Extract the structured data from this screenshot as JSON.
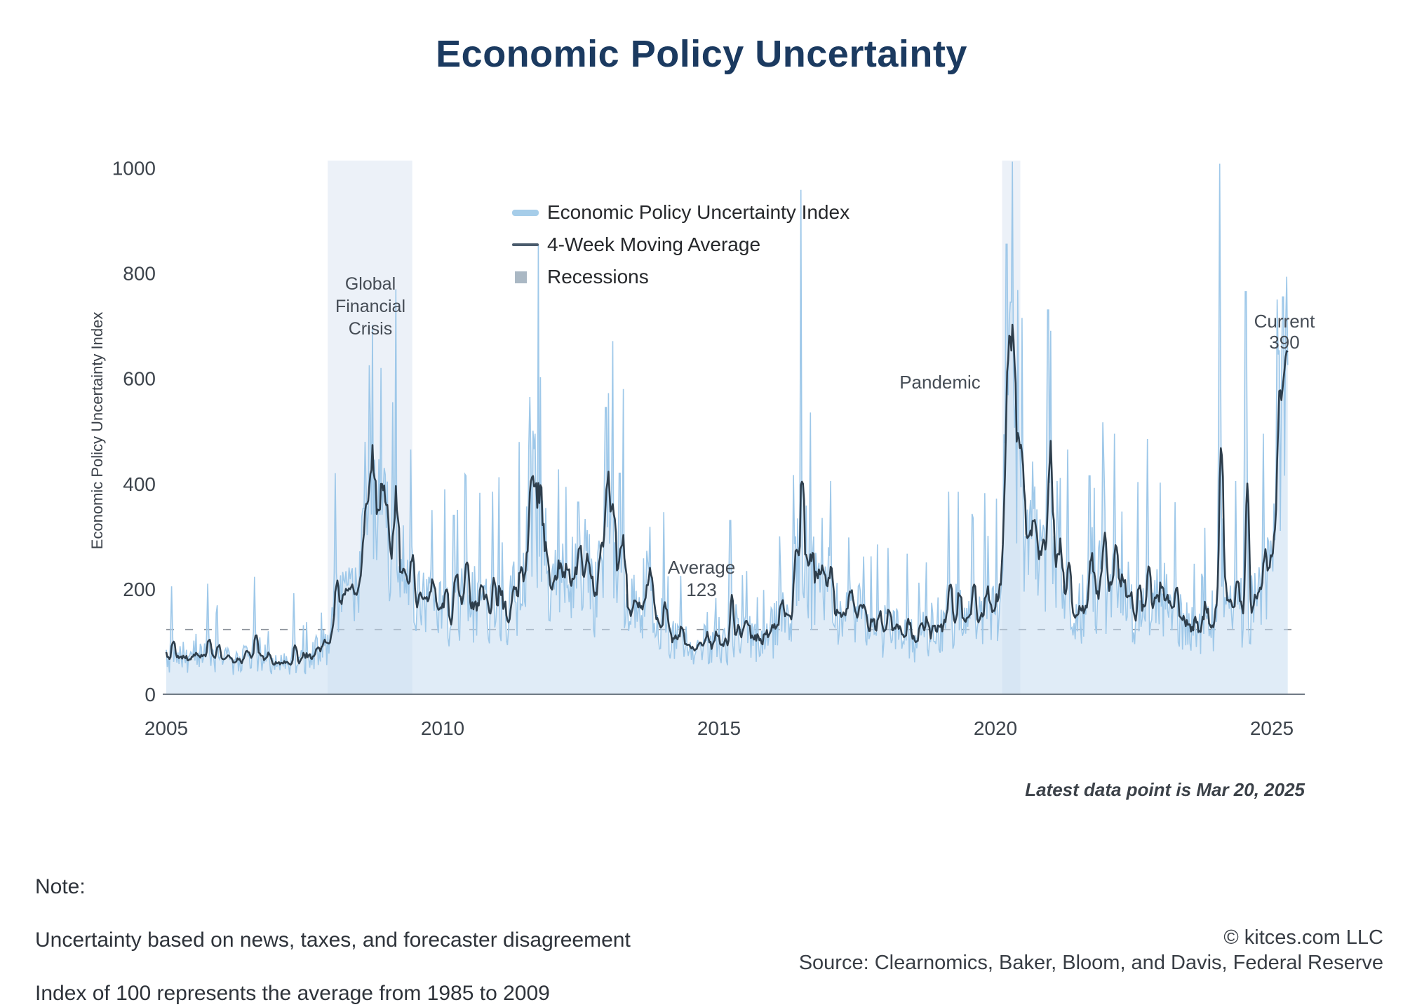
{
  "title": "Economic Policy Uncertainty",
  "legend": {
    "items": [
      {
        "label": "Economic Policy Uncertainty Index",
        "swatch": "thick-line",
        "color": "#a6cde9"
      },
      {
        "label": "4-Week Moving Average",
        "swatch": "thin-line",
        "color": "#4a5b6c"
      },
      {
        "label": "Recessions",
        "swatch": "square",
        "color": "#aab8c4"
      }
    ]
  },
  "annotations": {
    "gfc": "Global\nFinancial\nCrisis",
    "pandemic": "Pandemic",
    "average": "Average\n123",
    "current": "Current\n390"
  },
  "footnotes": {
    "latest": "Latest data point is Mar 20, 2025",
    "note_title": "Note:",
    "note_line1": "Uncertainty based on news, taxes, and forecaster disagreement",
    "note_line2": "Index of 100 represents the average from 1985 to 2009",
    "copyright": "© kitces.com LLC",
    "source": "Source: Clearnomics, Baker, Bloom, and Davis, Federal Reserve"
  },
  "chart_data": {
    "type": "area",
    "title": "Economic Policy Uncertainty",
    "xlabel": "",
    "ylabel": "Economic Policy Uncertainty Index",
    "x_ticks": [
      2005,
      2010,
      2015,
      2020,
      2025
    ],
    "y_ticks": [
      0,
      200,
      400,
      600,
      800,
      1000
    ],
    "x_range": [
      2005,
      2025.3
    ],
    "y_range": [
      0,
      1014
    ],
    "grid": false,
    "legend_position": "upper-left-inside",
    "average_value": 123,
    "current_value": 390,
    "latest_point_label": "Mar 20, 2025",
    "recessions": [
      {
        "label": "Global Financial Crisis",
        "start": 2007.92,
        "end": 2009.45
      },
      {
        "label": "Pandemic",
        "start": 2020.12,
        "end": 2020.45
      }
    ],
    "series": [
      {
        "name": "Economic Policy Uncertainty Index",
        "style": "weekly spikes with filled area",
        "note": "weekly index values; anchors give the smoothed level, spikes give notable peaks read off the chart",
        "anchors": [
          [
            2005,
            75
          ],
          [
            2005.4,
            65
          ],
          [
            2005.8,
            72
          ],
          [
            2006.2,
            60
          ],
          [
            2006.6,
            80
          ],
          [
            2006.9,
            62
          ],
          [
            2007.2,
            58
          ],
          [
            2007.6,
            68
          ],
          [
            2007.95,
            105
          ],
          [
            2008.15,
            165
          ],
          [
            2008.45,
            185
          ],
          [
            2008.7,
            390
          ],
          [
            2008.9,
            355
          ],
          [
            2009.1,
            285
          ],
          [
            2009.35,
            215
          ],
          [
            2009.6,
            190
          ],
          [
            2009.85,
            170
          ],
          [
            2010.1,
            150
          ],
          [
            2010.4,
            185
          ],
          [
            2010.65,
            155
          ],
          [
            2010.95,
            185
          ],
          [
            2011.15,
            140
          ],
          [
            2011.45,
            230
          ],
          [
            2011.62,
            400
          ],
          [
            2011.8,
            275
          ],
          [
            2012.05,
            205
          ],
          [
            2012.35,
            235
          ],
          [
            2012.55,
            245
          ],
          [
            2012.75,
            195
          ],
          [
            2012.95,
            365
          ],
          [
            2013.1,
            275
          ],
          [
            2013.4,
            160
          ],
          [
            2013.75,
            205
          ],
          [
            2014.05,
            120
          ],
          [
            2014.4,
            92
          ],
          [
            2014.8,
            105
          ],
          [
            2015.1,
            95
          ],
          [
            2015.35,
            118
          ],
          [
            2015.7,
            98
          ],
          [
            2016.05,
            128
          ],
          [
            2016.3,
            158
          ],
          [
            2016.5,
            340
          ],
          [
            2016.68,
            215
          ],
          [
            2016.9,
            235
          ],
          [
            2017.1,
            158
          ],
          [
            2017.4,
            168
          ],
          [
            2017.8,
            118
          ],
          [
            2018.1,
            128
          ],
          [
            2018.5,
            108
          ],
          [
            2018.9,
            128
          ],
          [
            2019.2,
            158
          ],
          [
            2019.55,
            148
          ],
          [
            2019.85,
            138
          ],
          [
            2020.05,
            155
          ],
          [
            2020.17,
            480
          ],
          [
            2020.27,
            630
          ],
          [
            2020.38,
            480
          ],
          [
            2020.55,
            315
          ],
          [
            2020.8,
            265
          ],
          [
            2021,
            290
          ],
          [
            2021.2,
            215
          ],
          [
            2021.5,
            168
          ],
          [
            2021.8,
            178
          ],
          [
            2022.2,
            238
          ],
          [
            2022.5,
            168
          ],
          [
            2022.8,
            188
          ],
          [
            2023.1,
            178
          ],
          [
            2023.4,
            148
          ],
          [
            2023.7,
            118
          ],
          [
            2023.95,
            128
          ],
          [
            2024.07,
            330
          ],
          [
            2024.2,
            175
          ],
          [
            2024.5,
            158
          ],
          [
            2024.75,
            188
          ],
          [
            2025,
            250
          ],
          [
            2025.08,
            380
          ],
          [
            2025.15,
            560
          ],
          [
            2025.3,
            655
          ]
        ],
        "spikes": [
          [
            2005.1,
            205
          ],
          [
            2005.75,
            210
          ],
          [
            2006.6,
            215
          ],
          [
            2007.3,
            192
          ],
          [
            2008.06,
            420
          ],
          [
            2008.68,
            625
          ],
          [
            2008.88,
            620
          ],
          [
            2009.1,
            555
          ],
          [
            2009.42,
            465
          ],
          [
            2009.8,
            350
          ],
          [
            2010.2,
            340
          ],
          [
            2010.42,
            415
          ],
          [
            2010.9,
            385
          ],
          [
            2011.58,
            565
          ],
          [
            2011.68,
            495
          ],
          [
            2012.45,
            365
          ],
          [
            2012.95,
            545
          ],
          [
            2013.2,
            420
          ],
          [
            2013.75,
            318
          ],
          [
            2014.3,
            225
          ],
          [
            2015.2,
            330
          ],
          [
            2016.1,
            300
          ],
          [
            2016.48,
            585
          ],
          [
            2016.87,
            335
          ],
          [
            2017.35,
            298
          ],
          [
            2018.05,
            278
          ],
          [
            2019.15,
            385
          ],
          [
            2019.6,
            335
          ],
          [
            2019.8,
            382
          ],
          [
            2020.2,
            855
          ],
          [
            2020.28,
            745
          ],
          [
            2020.48,
            715
          ],
          [
            2020.95,
            730
          ],
          [
            2021.3,
            465
          ],
          [
            2021.7,
            415
          ],
          [
            2022.15,
            495
          ],
          [
            2022.75,
            485
          ],
          [
            2023.25,
            365
          ],
          [
            2024.05,
            1008
          ],
          [
            2024.35,
            405
          ],
          [
            2024.53,
            765
          ],
          [
            2024.85,
            495
          ],
          [
            2025.1,
            750
          ],
          [
            2025.2,
            755
          ]
        ]
      },
      {
        "name": "4-Week Moving Average",
        "style": "line",
        "derived": "4-week trailing average of the weekly index",
        "end_value": 650
      }
    ],
    "colors": {
      "index_line": "#9ec8e9",
      "index_fill": "rgba(199,221,240,0.55)",
      "ma_line": "#2e3e4c",
      "recession_band": "#ecf1f8",
      "average_line": "#8b9199",
      "axis": "#707a85",
      "tick_text": "#3d444c",
      "title_text": "#1b3a60"
    }
  }
}
